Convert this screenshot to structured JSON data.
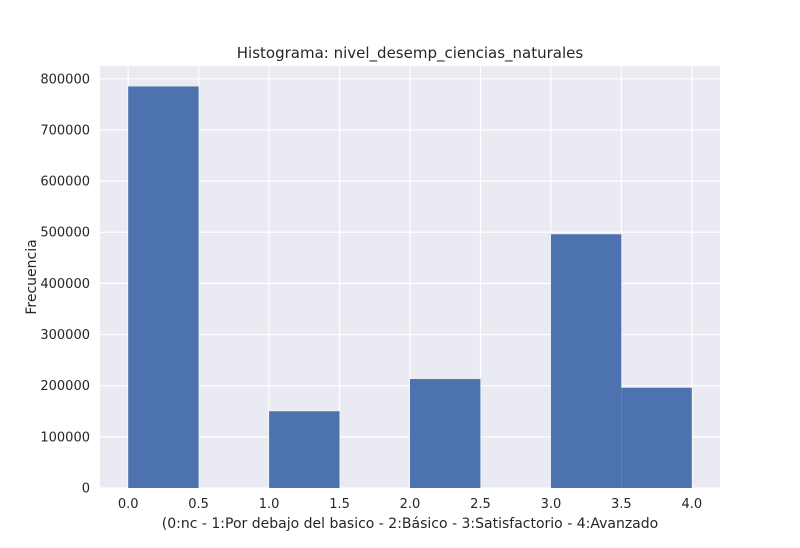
{
  "chart_data": {
    "type": "bar",
    "title": "Histograma: nivel_desemp_ciencias_naturales",
    "xlabel": "(0:nc - 1:Por debajo del basico - 2:Básico - 3:Satisfactorio - 4:Avanzado",
    "ylabel": "Frecuencia",
    "xlim": [
      -0.2,
      4.2
    ],
    "ylim": [
      0,
      825000
    ],
    "grid": true,
    "x_ticks": [
      0.0,
      0.5,
      1.0,
      1.5,
      2.0,
      2.5,
      3.0,
      3.5,
      4.0
    ],
    "x_tick_labels": [
      "0.0",
      "0.5",
      "1.0",
      "1.5",
      "2.0",
      "2.5",
      "3.0",
      "3.5",
      "4.0"
    ],
    "y_ticks": [
      0,
      100000,
      200000,
      300000,
      400000,
      500000,
      600000,
      700000,
      800000
    ],
    "y_tick_labels": [
      "0",
      "100000",
      "200000",
      "300000",
      "400000",
      "500000",
      "600000",
      "700000",
      "800000"
    ],
    "bins": [
      {
        "start": 0.0,
        "end": 0.5,
        "value": 785000
      },
      {
        "start": 0.5,
        "end": 1.0,
        "value": 0
      },
      {
        "start": 1.0,
        "end": 1.5,
        "value": 150000
      },
      {
        "start": 1.5,
        "end": 2.0,
        "value": 0
      },
      {
        "start": 2.0,
        "end": 2.5,
        "value": 213000
      },
      {
        "start": 2.5,
        "end": 3.0,
        "value": 0
      },
      {
        "start": 3.0,
        "end": 3.5,
        "value": 496000
      },
      {
        "start": 3.5,
        "end": 4.0,
        "value": 196000
      }
    ],
    "colors": {
      "bar": "#4c72b0",
      "background": "#eaeaf2",
      "grid": "#ffffff"
    }
  }
}
